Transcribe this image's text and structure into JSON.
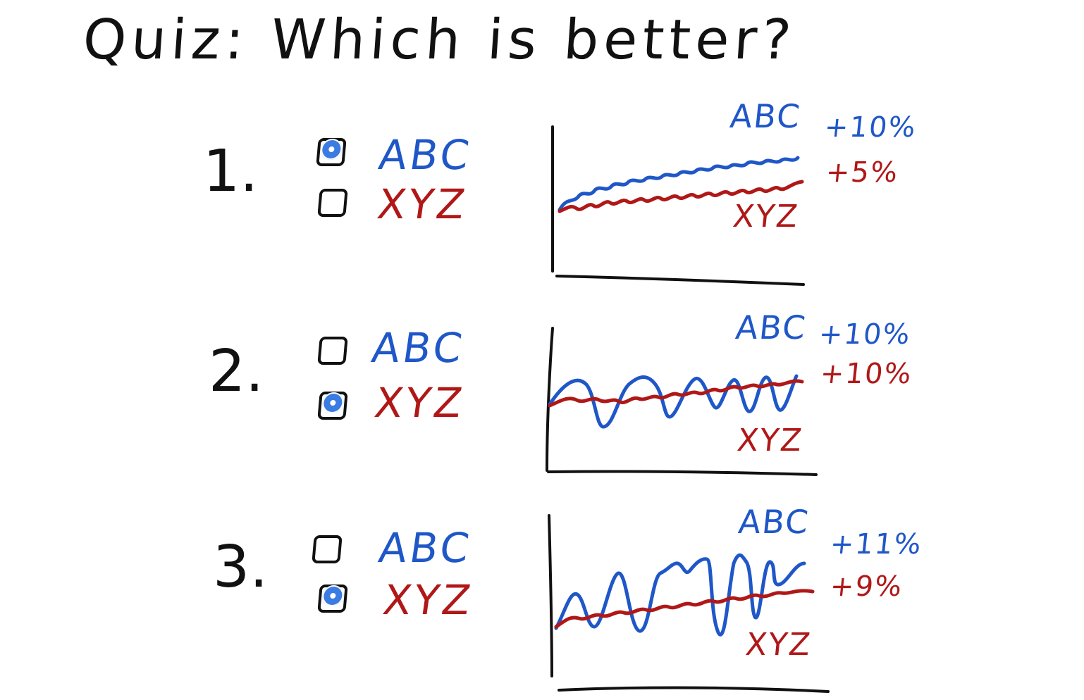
{
  "title": "Quiz: Which is better?",
  "colors": {
    "abc": "#1f57c8",
    "xyz": "#b01818",
    "ink": "#111111",
    "radio": "#3b7ce2"
  },
  "questions": [
    {
      "number": "1.",
      "options": [
        {
          "label": "ABC",
          "selected": true
        },
        {
          "label": "XYZ",
          "selected": false
        }
      ],
      "chart": {
        "abc_label": "ABC",
        "xyz_label": "XYZ",
        "abc_return": "+10%",
        "xyz_return": "+5%"
      }
    },
    {
      "number": "2.",
      "options": [
        {
          "label": "ABC",
          "selected": false
        },
        {
          "label": "XYZ",
          "selected": true
        }
      ],
      "chart": {
        "abc_label": "ABC",
        "xyz_label": "XYZ",
        "abc_return": "+10%",
        "xyz_return": "+10%"
      }
    },
    {
      "number": "3.",
      "options": [
        {
          "label": "ABC",
          "selected": false
        },
        {
          "label": "XYZ",
          "selected": true
        }
      ],
      "chart": {
        "abc_label": "ABC",
        "xyz_label": "XYZ",
        "abc_return": "+11%",
        "xyz_return": "+9%"
      }
    }
  ]
}
